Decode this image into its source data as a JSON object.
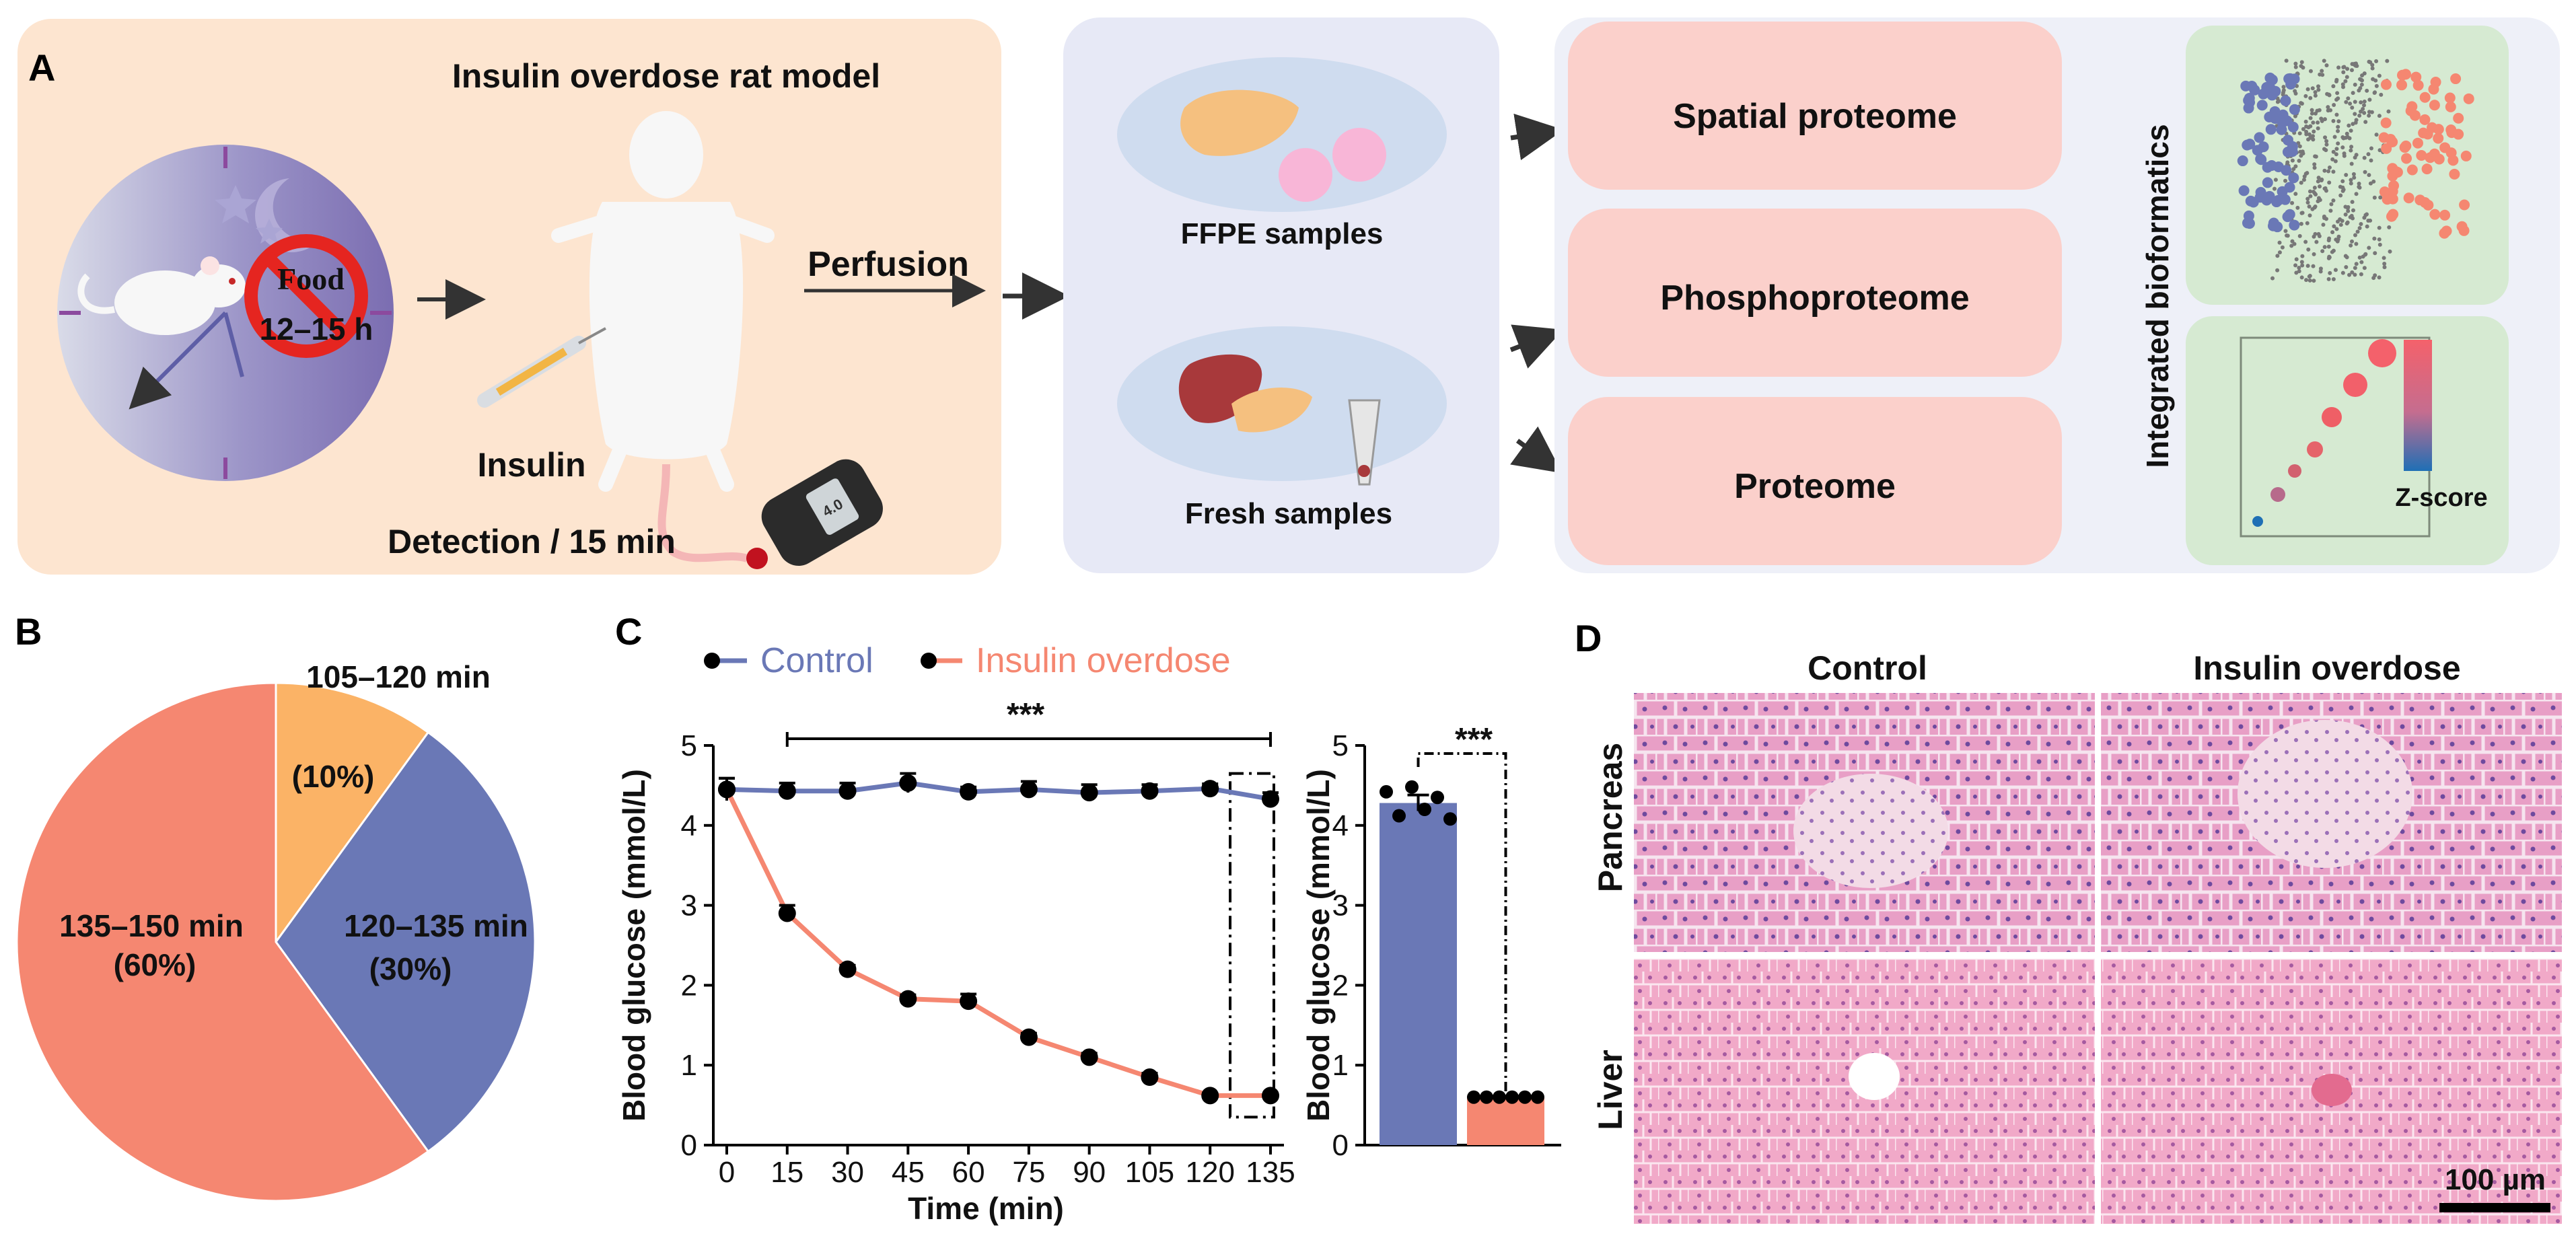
{
  "panel_labels": {
    "a": "A",
    "b": "B",
    "c": "C",
    "d": "D"
  },
  "panel_a": {
    "model_title": "Insulin overdose rat model",
    "food_label": "Food",
    "fasting_label": "12–15 h",
    "insulin_label": "Insulin",
    "detection_label": "Detection / 15 min",
    "glucometer_reading": "4.0",
    "perfusion_label": "Perfusion",
    "ffpe_label": "FFPE samples",
    "fresh_label": "Fresh samples",
    "omics": [
      "Spatial proteome",
      "Phosphoproteome",
      "Proteome"
    ],
    "bioinformatics_label": "Integrated bioformatics",
    "zscore_label": "Z-score",
    "colors": {
      "model_bg": "#fde5d0",
      "sample_bg": "#e7e9f6",
      "omics_box": "#fbd0cb",
      "omics_bg": "#eef0f8",
      "bio_bg": "#d6ead2",
      "blue": "#6a78b6",
      "salmon": "#f58771"
    }
  },
  "panel_b": {
    "chart_data": {
      "type": "pie",
      "title": "",
      "slices": [
        {
          "label": "105–120 min",
          "percent_label": "(10%)",
          "value": 10,
          "color": "#fbb366"
        },
        {
          "label": "120–135 min",
          "percent_label": "(30%)",
          "value": 30,
          "color": "#6a78b6"
        },
        {
          "label": "135–150 min",
          "percent_label": "(60%)",
          "value": 60,
          "color": "#f58771"
        }
      ]
    }
  },
  "panel_c": {
    "chart_data": [
      {
        "type": "line",
        "xlabel": "Time (min)",
        "ylabel": "Blood glucose (mmol/L)",
        "x": [
          0,
          15,
          30,
          45,
          60,
          75,
          90,
          105,
          120,
          135
        ],
        "xlim": [
          0,
          135
        ],
        "ylim": [
          0,
          5
        ],
        "yticks": [
          0,
          1,
          2,
          3,
          4,
          5
        ],
        "significance": "***",
        "series": [
          {
            "name": "Control",
            "color": "#6a78b6",
            "values": [
              4.45,
              4.43,
              4.43,
              4.53,
              4.42,
              4.45,
              4.41,
              4.43,
              4.46,
              4.33
            ],
            "errors": [
              0.14,
              0.1,
              0.1,
              0.12,
              0.06,
              0.1,
              0.1,
              0.08,
              0.06,
              0.08
            ]
          },
          {
            "name": "Insulin overdose",
            "color": "#f58771",
            "values": [
              4.45,
              2.9,
              2.2,
              1.83,
              1.8,
              1.35,
              1.1,
              0.85,
              0.62,
              0.62
            ],
            "errors": [
              0.14,
              0.1,
              0.05,
              0.05,
              0.09,
              0.05,
              0.05,
              0.05,
              0.03,
              0.03
            ]
          }
        ]
      },
      {
        "type": "bar",
        "ylabel": "Blood glucose (mmol/L)",
        "ylim": [
          0,
          5
        ],
        "yticks": [
          0,
          1,
          2,
          3,
          4,
          5
        ],
        "categories": [
          "Control",
          "Insulin overdose"
        ],
        "values": [
          4.28,
          0.6
        ],
        "errors": [
          0.1,
          0.0
        ],
        "colors": [
          "#6a78b6",
          "#f58771"
        ],
        "points": [
          [
            4.42,
            4.12,
            4.48,
            4.2,
            4.35,
            4.08
          ],
          [
            0.6,
            0.6,
            0.6,
            0.6,
            0.6,
            0.6
          ]
        ],
        "significance": "***"
      }
    ]
  },
  "panel_d": {
    "columns": [
      "Control",
      "Insulin overdose"
    ],
    "rows": [
      "Pancreas",
      "Liver"
    ],
    "scale_bar": "100 µm"
  }
}
